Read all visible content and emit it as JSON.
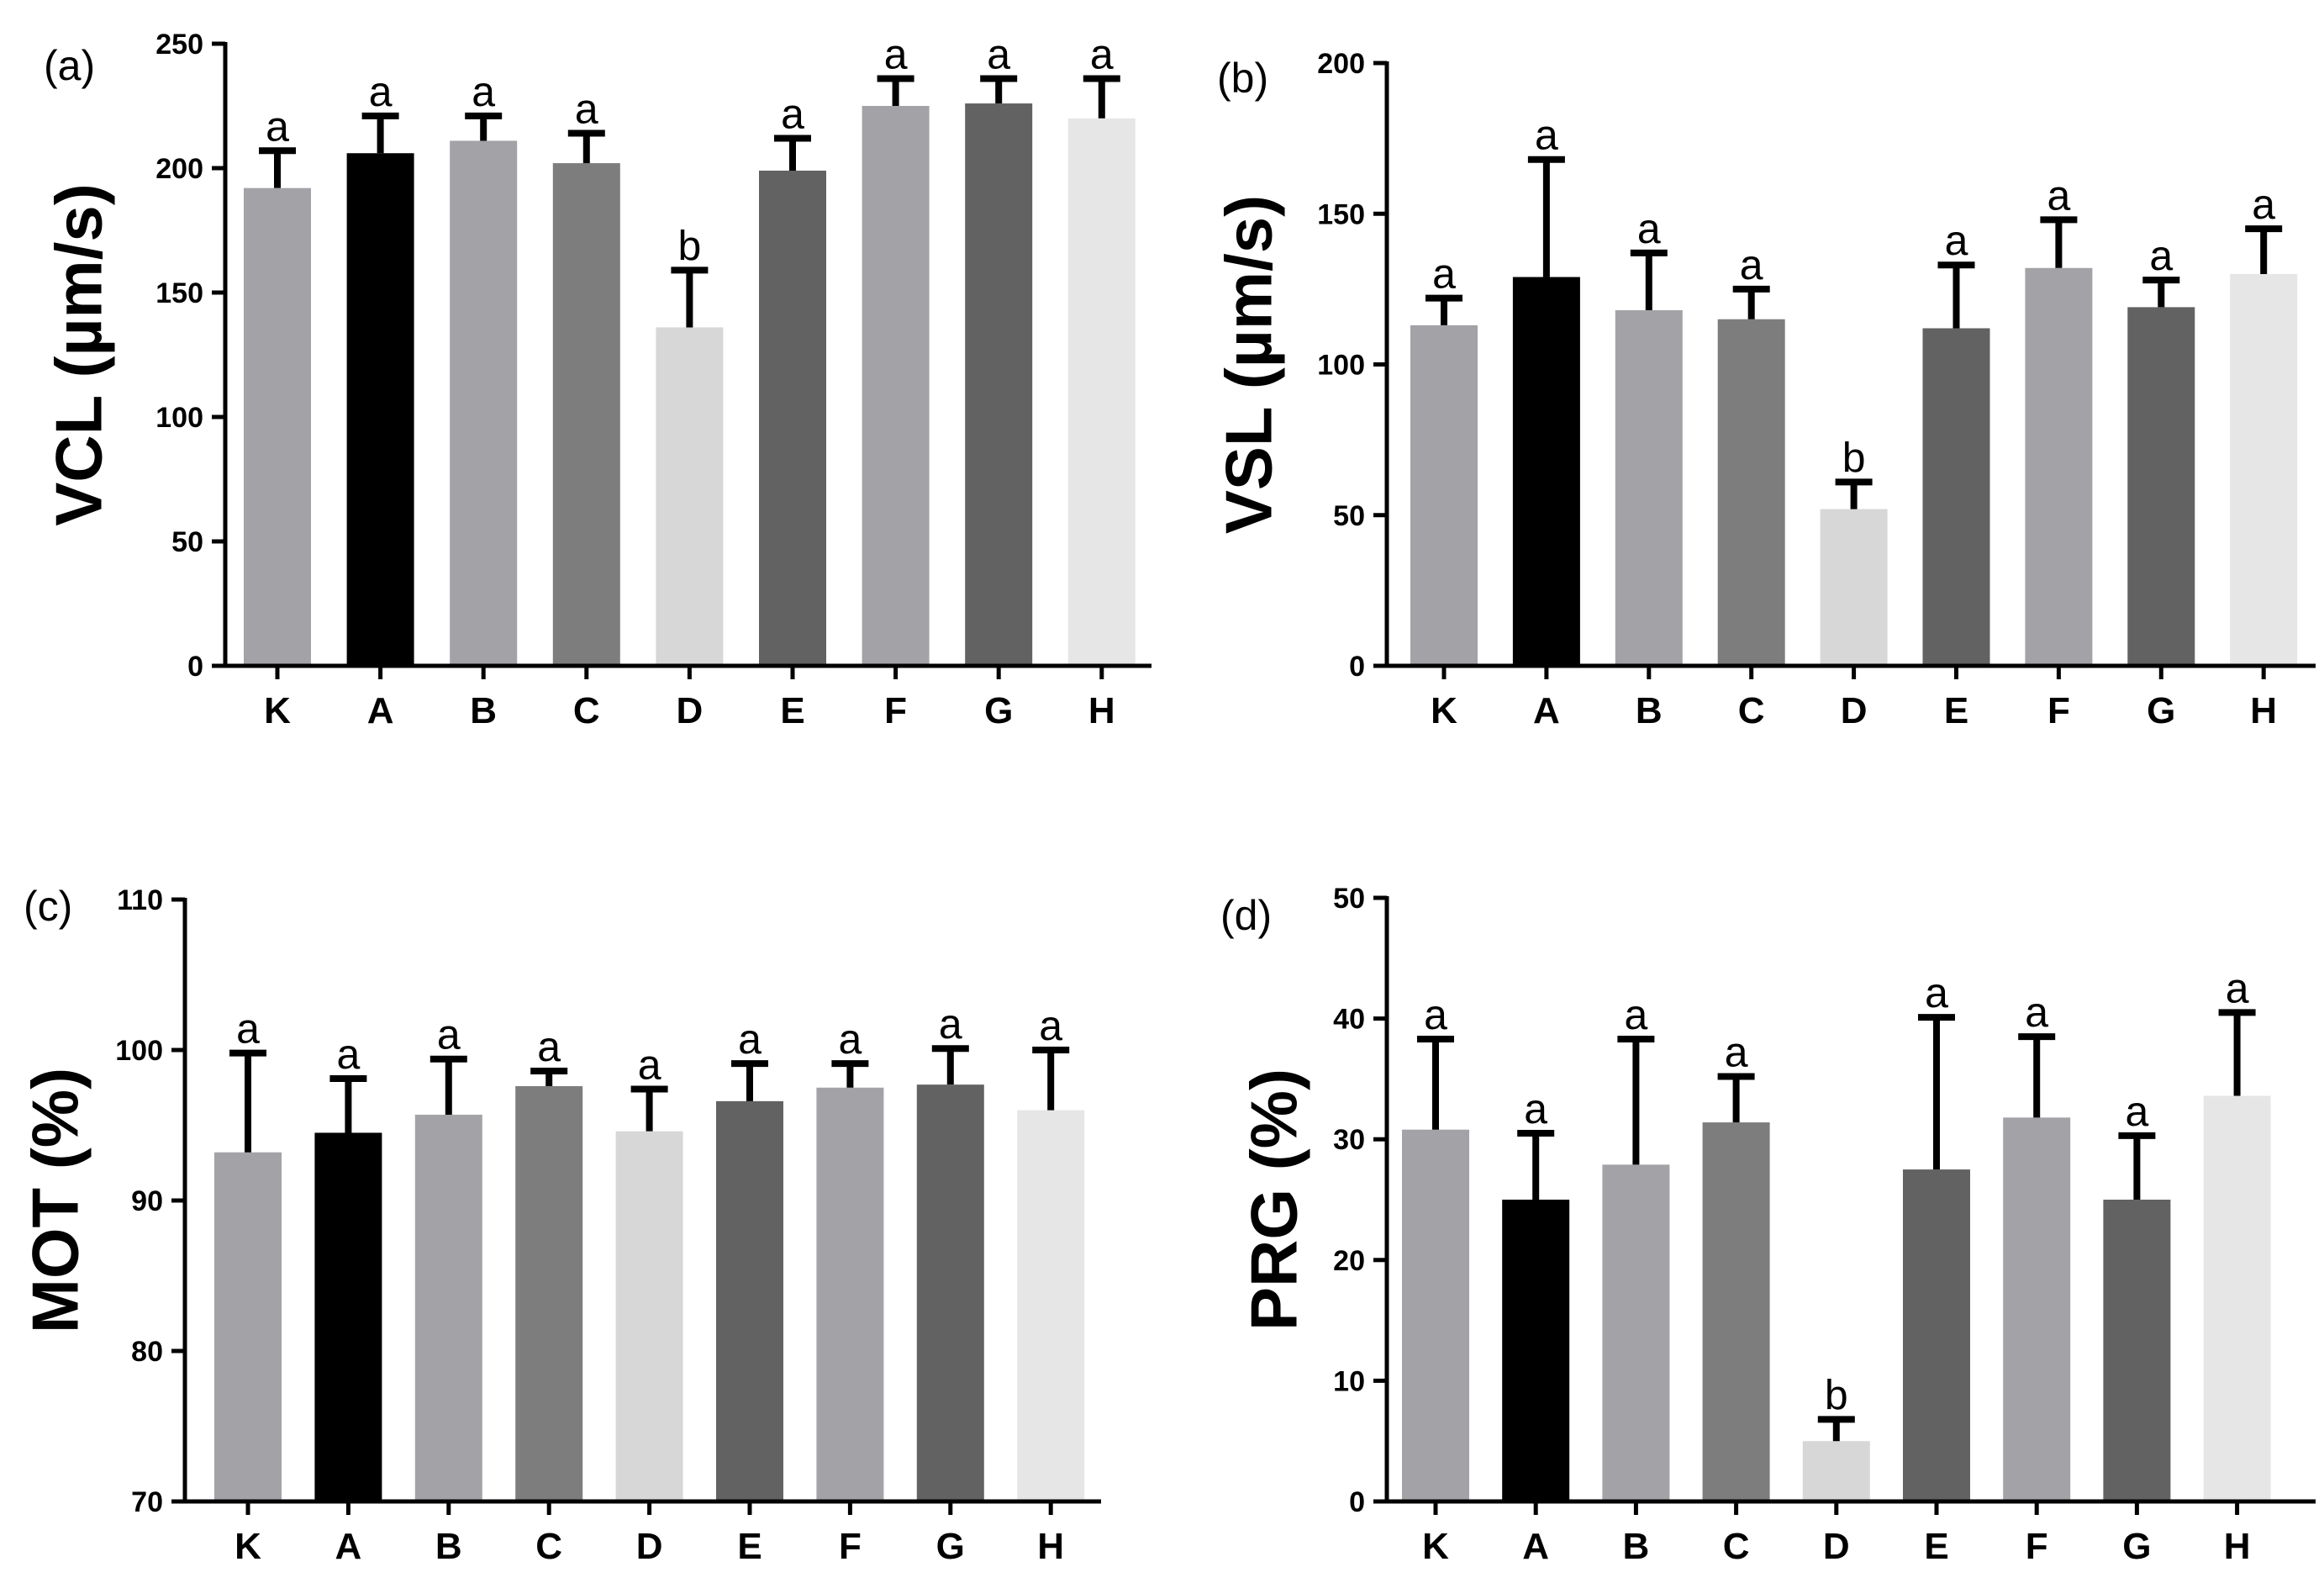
{
  "chart_data": [
    {
      "type": "bar",
      "panel_label": "(a)",
      "ylabel": "VCL (µm/s)",
      "ylim": [
        0,
        250
      ],
      "yticks": [
        0,
        50,
        100,
        150,
        200,
        250
      ],
      "categories": [
        "K",
        "A",
        "B",
        "C",
        "D",
        "E",
        "F",
        "G",
        "H"
      ],
      "values": [
        192,
        206,
        211,
        202,
        136,
        199,
        225,
        226,
        220
      ],
      "errors": [
        15,
        15,
        10,
        12,
        23,
        13,
        11,
        10,
        16
      ],
      "significance": [
        "a",
        "a",
        "a",
        "a",
        "b",
        "a",
        "a",
        "a",
        "a"
      ],
      "colors": [
        "#a3a2a6",
        "#000000",
        "#a3a2a6",
        "#7d7d7d",
        "#d7d7d7",
        "#626262",
        "#a3a2a6",
        "#626262",
        "#e6e6e6"
      ]
    },
    {
      "type": "bar",
      "panel_label": "(b)",
      "ylabel": "VSL (µm/s)",
      "ylim": [
        0,
        200
      ],
      "yticks": [
        0,
        50,
        100,
        150,
        200
      ],
      "categories": [
        "K",
        "A",
        "B",
        "C",
        "D",
        "E",
        "F",
        "G",
        "H"
      ],
      "values": [
        113,
        129,
        118,
        115,
        52,
        112,
        132,
        119,
        130
      ],
      "errors": [
        9,
        39,
        19,
        10,
        9,
        21,
        16,
        9,
        15
      ],
      "significance": [
        "a",
        "a",
        "a",
        "a",
        "b",
        "a",
        "a",
        "a",
        "a"
      ],
      "colors": [
        "#a3a2a6",
        "#000000",
        "#a3a2a6",
        "#7d7d7d",
        "#d7d7d7",
        "#626262",
        "#a3a2a6",
        "#626262",
        "#e6e6e6"
      ]
    },
    {
      "type": "bar",
      "panel_label": "(c)",
      "ylabel": "MOT (%)",
      "ylim": [
        70,
        110
      ],
      "yticks": [
        70,
        80,
        90,
        100,
        110
      ],
      "categories": [
        "K",
        "A",
        "B",
        "C",
        "D",
        "E",
        "F",
        "G",
        "H"
      ],
      "values": [
        93.2,
        94.5,
        95.7,
        97.6,
        94.6,
        96.6,
        97.5,
        97.7,
        96.0
      ],
      "errors": [
        6.6,
        3.6,
        3.7,
        1.0,
        2.8,
        2.5,
        1.6,
        2.4,
        4.0
      ],
      "significance": [
        "a",
        "a",
        "a",
        "a",
        "a",
        "a",
        "a",
        "a",
        "a"
      ],
      "colors": [
        "#a3a2a6",
        "#000000",
        "#a3a2a6",
        "#7d7d7d",
        "#d7d7d7",
        "#626262",
        "#a3a2a6",
        "#626262",
        "#e6e6e6"
      ]
    },
    {
      "type": "bar",
      "panel_label": "(d)",
      "ylabel": "PRG (%)",
      "ylim": [
        0,
        50
      ],
      "yticks": [
        0,
        10,
        20,
        30,
        40,
        50
      ],
      "categories": [
        "K",
        "A",
        "B",
        "C",
        "D",
        "E",
        "F",
        "G",
        "H"
      ],
      "values": [
        30.8,
        25.0,
        27.9,
        31.4,
        5.0,
        27.5,
        31.8,
        25.0,
        33.6
      ],
      "errors": [
        7.5,
        5.5,
        10.4,
        3.8,
        1.8,
        12.6,
        6.7,
        5.3,
        6.9
      ],
      "significance": [
        "a",
        "a",
        "a",
        "a",
        "b",
        "a",
        "a",
        "a",
        "a"
      ],
      "colors": [
        "#a3a2a6",
        "#000000",
        "#a3a2a6",
        "#7d7d7d",
        "#d7d7d7",
        "#626262",
        "#a3a2a6",
        "#626262",
        "#e6e6e6"
      ]
    }
  ]
}
